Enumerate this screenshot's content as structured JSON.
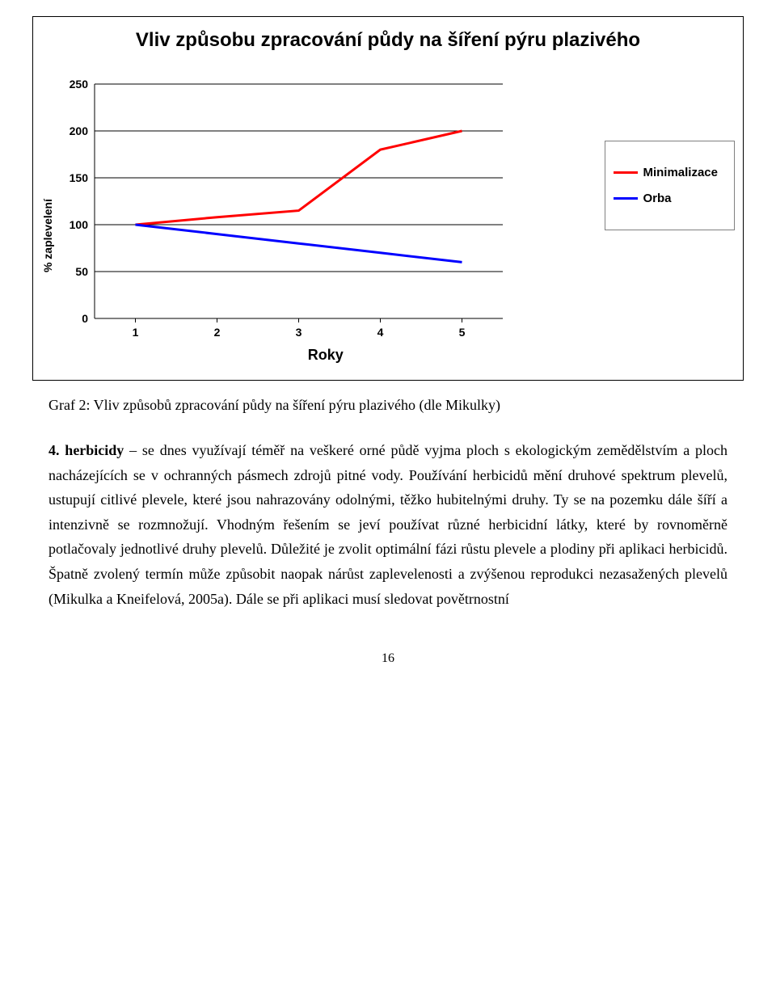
{
  "chart": {
    "type": "line",
    "title": "Vliv způsobu zpracování půdy na šíření pýru plazivého",
    "x_label": "Roky",
    "y_label": "% zaplevelení",
    "x_categories": [
      "1",
      "2",
      "3",
      "4",
      "5"
    ],
    "y_ticks": [
      0,
      50,
      100,
      150,
      200,
      250
    ],
    "ylim": [
      0,
      250
    ],
    "series": [
      {
        "name": "Minimalizace",
        "color": "#ff0000",
        "values": [
          100,
          108,
          115,
          180,
          200
        ],
        "line_width": 3
      },
      {
        "name": "Orba",
        "color": "#0000ff",
        "values": [
          100,
          90,
          80,
          70,
          60
        ],
        "line_width": 3
      }
    ],
    "grid_color": "#000000",
    "background_color": "#ffffff",
    "title_fontsize": 24,
    "axis_fontsize": 14,
    "legend_border_color": "#808080"
  },
  "caption": "Graf 2: Vliv způsobů zpracování půdy na šíření pýru plazivého (dle Mikulky)",
  "body": {
    "lead": "4. herbicidy",
    "text": " – se dnes využívají téměř na veškeré orné půdě vyjma ploch s ekologickým zemědělstvím a ploch nacházejících se v ochranných pásmech zdrojů pitné vody. Používání herbicidů mění druhové spektrum plevelů, ustupují citlivé plevele, které jsou nahrazovány odolnými, těžko hubitelnými druhy. Ty se na pozemku dále šíří a intenzivně se rozmnožují. Vhodným řešením se jeví používat různé herbicidní látky, které by rovnoměrně potlačovaly jednotlivé druhy plevelů. Důležité je zvolit optimální fázi růstu plevele a plodiny při aplikaci herbicidů. Špatně zvolený termín může způsobit naopak nárůst zaplevelenosti a zvýšenou reprodukci nezasažených plevelů (Mikulka a Kneifelová, 2005a). Dále se při aplikaci musí sledovat povětrnostní"
  },
  "page_number": "16"
}
